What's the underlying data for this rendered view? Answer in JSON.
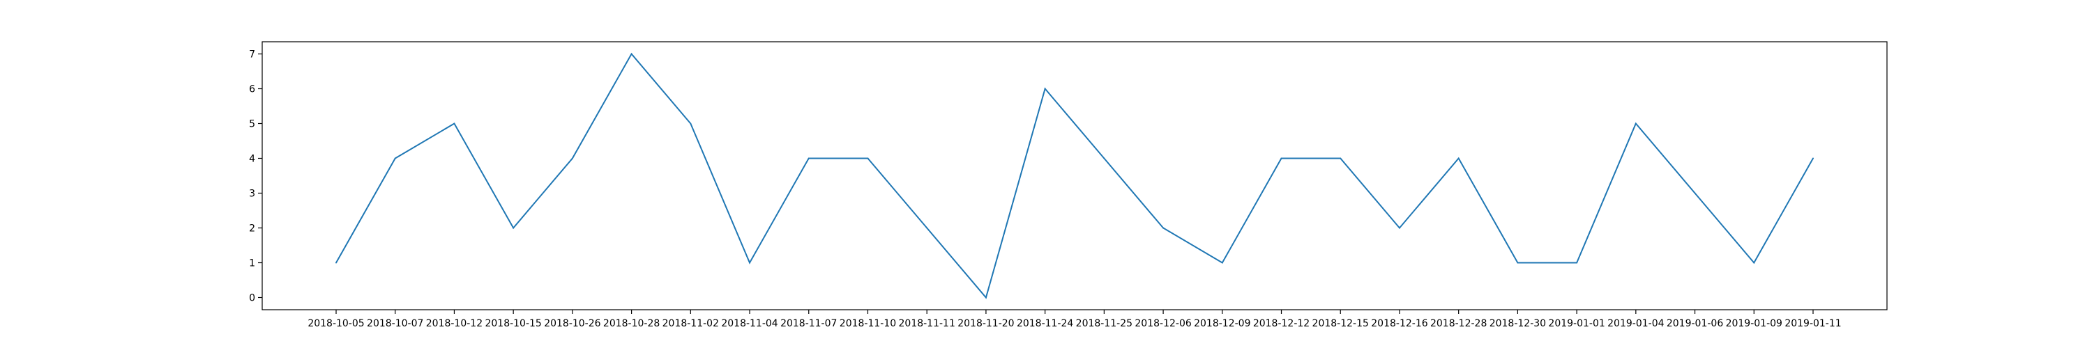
{
  "chart_data": {
    "type": "line",
    "title": "",
    "xlabel": "",
    "ylabel": "",
    "categories": [
      "2018-10-05",
      "2018-10-07",
      "2018-10-12",
      "2018-10-15",
      "2018-10-26",
      "2018-10-28",
      "2018-11-02",
      "2018-11-04",
      "2018-11-07",
      "2018-11-10",
      "2018-11-11",
      "2018-11-20",
      "2018-11-24",
      "2018-11-25",
      "2018-12-06",
      "2018-12-09",
      "2018-12-12",
      "2018-12-15",
      "2018-12-16",
      "2018-12-28",
      "2018-12-30",
      "2019-01-01",
      "2019-01-04",
      "2019-01-06",
      "2019-01-09",
      "2019-01-11"
    ],
    "series": [
      {
        "values": [
          1,
          4,
          5,
          2,
          4,
          7,
          5,
          1,
          4,
          4,
          2,
          0,
          6,
          4,
          2,
          1,
          4,
          4,
          2,
          4,
          1,
          1,
          5,
          3,
          1,
          4
        ],
        "color": "#1f77b4"
      }
    ],
    "yticks": [
      0,
      1,
      2,
      3,
      4,
      5,
      6,
      7
    ],
    "ylim": [
      -0.35,
      7.35
    ],
    "grid": false,
    "legend": "none"
  }
}
